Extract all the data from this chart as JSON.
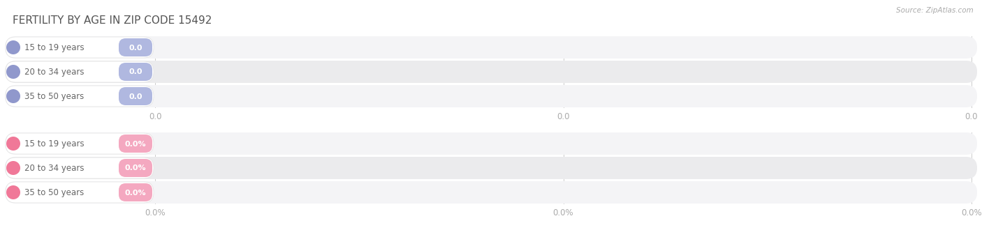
{
  "title": "FERTILITY BY AGE IN ZIP CODE 15492",
  "source_text": "Source: ZipAtlas.com",
  "top_categories": [
    "15 to 19 years",
    "20 to 34 years",
    "35 to 50 years"
  ],
  "bottom_categories": [
    "15 to 19 years",
    "20 to 34 years",
    "35 to 50 years"
  ],
  "top_value_labels": [
    "0.0",
    "0.0",
    "0.0"
  ],
  "bottom_value_labels": [
    "0.0%",
    "0.0%",
    "0.0%"
  ],
  "top_badge_color": "#b0b8e0",
  "top_dot_color": "#9098cc",
  "bottom_badge_color": "#f4a8c0",
  "bottom_dot_color": "#f07898",
  "row_bg_colors": [
    "#f4f4f6",
    "#ebebed",
    "#f4f4f6"
  ],
  "top_axis_ticks": [
    "0.0",
    "0.0",
    "0.0"
  ],
  "bottom_axis_ticks": [
    "0.0%",
    "0.0%",
    "0.0%"
  ],
  "title_color": "#555555",
  "axis_tick_color": "#aaaaaa",
  "label_text_color": "#666666",
  "background_color": "#ffffff",
  "figsize": [
    14.06,
    3.3
  ],
  "dpi": 100
}
